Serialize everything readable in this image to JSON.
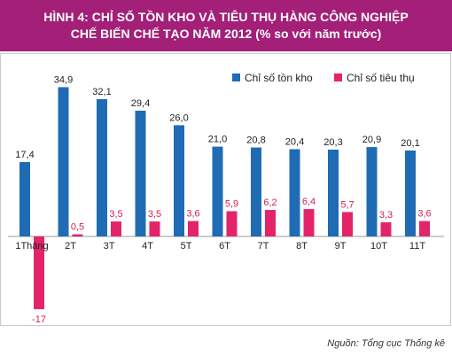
{
  "title_line1": "HÌNH 4: CHỈ SỐ TỒN KHO VÀ TIÊU THỤ HÀNG CÔNG NGHIỆP",
  "title_line2": "CHẾ BIẾN CHẾ TẠO NĂM 2012 (% so với năm trước)",
  "source": "Nguồn: Tổng cục Thống kê",
  "colors": {
    "inventory": "#1f6cb4",
    "consumption": "#e3246a",
    "title_bg": "#a31f78",
    "consumption_label": "#d0224f"
  },
  "chart_data": {
    "type": "bar",
    "categories": [
      "1Tháng",
      "2T",
      "3T",
      "4T",
      "5T",
      "6T",
      "7T",
      "8T",
      "9T",
      "10T",
      "11T"
    ],
    "series": [
      {
        "name": "Chỉ số tồn kho",
        "values": [
          17.4,
          34.9,
          32.1,
          29.4,
          26.0,
          21.0,
          20.8,
          20.4,
          20.3,
          20.9,
          20.1
        ],
        "labels": [
          "17,4",
          "34,9",
          "32,1",
          "29,4",
          "26,0",
          "21,0",
          "20,8",
          "20,4",
          "20,3",
          "20,9",
          "20,1"
        ]
      },
      {
        "name": "Chỉ số tiêu thụ",
        "values": [
          -17,
          0.5,
          3.5,
          3.5,
          3.6,
          5.9,
          6.2,
          6.4,
          5.7,
          3.3,
          3.6
        ],
        "labels": [
          "-17",
          "0,5",
          "3,5",
          "3,5",
          "3,6",
          "5,9",
          "6,2",
          "6,4",
          "5,7",
          "3,3",
          "3,6"
        ]
      }
    ],
    "ylim": [
      -17,
      35
    ],
    "legend_position": "top-right",
    "grid": false
  }
}
